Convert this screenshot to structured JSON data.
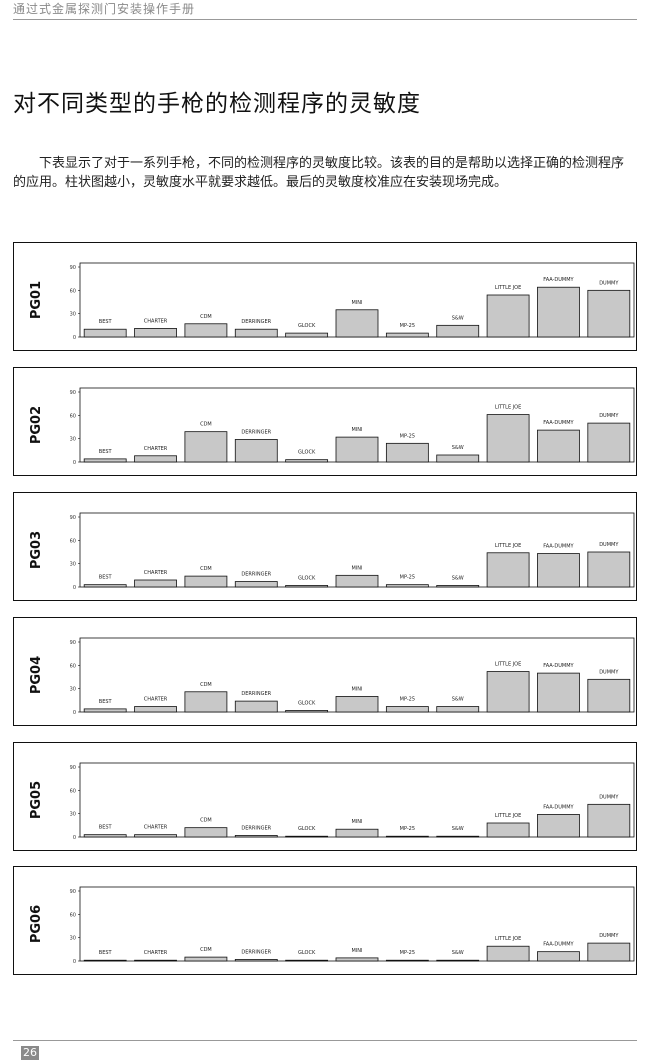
{
  "header": {
    "title": "通过式金属探测门安装操作手册"
  },
  "main_title": "对不同类型的手枪的检测程序的灵敏度",
  "intro": "下表显示了对于一系列手枪，不同的检测程序的灵敏度比较。该表的目的是帮助以选择正确的检测程序的应用。柱状图越小，灵敏度水平就要求越低。最后的灵敏度校准应在安装现场完成。",
  "footer": {
    "page_number": "26"
  },
  "chart_data": [
    {
      "type": "bar",
      "label": "PG01",
      "ylim": [
        0,
        90
      ],
      "yticks": [
        "0",
        "30",
        "60",
        "90"
      ],
      "categories": [
        "BEST",
        "CHARTER",
        "CDM",
        "DERRINGER",
        "GLOCK",
        "MINI",
        "MP-25",
        "S&W",
        "LITTLE JOE",
        "FAA-DUMMY",
        "DUMMY"
      ],
      "values": [
        10,
        11,
        17,
        10,
        5,
        35,
        5,
        15,
        54,
        64,
        60
      ]
    },
    {
      "type": "bar",
      "label": "PG02",
      "ylim": [
        0,
        90
      ],
      "yticks": [
        "0",
        "30",
        "60",
        "90"
      ],
      "categories": [
        "BEST",
        "CHARTER",
        "CDM",
        "DERRINGER",
        "GLOCK",
        "MINI",
        "MP-25",
        "S&W",
        "LITTLE JOE",
        "FAA-DUMMY",
        "DUMMY"
      ],
      "values": [
        4,
        8,
        39,
        29,
        3,
        32,
        24,
        9,
        61,
        41,
        50
      ]
    },
    {
      "type": "bar",
      "label": "PG03",
      "ylim": [
        0,
        90
      ],
      "yticks": [
        "0",
        "30",
        "60",
        "90"
      ],
      "categories": [
        "BEST",
        "CHARTER",
        "CDM",
        "DERRINGER",
        "GLOCK",
        "MINI",
        "MP-25",
        "S&W",
        "LITTLE JOE",
        "FAA-DUMMY",
        "DUMMY"
      ],
      "values": [
        3,
        9,
        14,
        7,
        2,
        15,
        3,
        2,
        44,
        43,
        45
      ]
    },
    {
      "type": "bar",
      "label": "PG04",
      "ylim": [
        0,
        90
      ],
      "yticks": [
        "0",
        "30",
        "60",
        "90"
      ],
      "categories": [
        "BEST",
        "CHARTER",
        "CDM",
        "DERRINGER",
        "GLOCK",
        "MINI",
        "MP-25",
        "S&W",
        "LITTLE JOE",
        "FAA-DUMMY",
        "DUMMY"
      ],
      "values": [
        4,
        7,
        26,
        14,
        2,
        20,
        7,
        7,
        52,
        50,
        42
      ]
    },
    {
      "type": "bar",
      "label": "PG05",
      "ylim": [
        0,
        90
      ],
      "yticks": [
        "0",
        "30",
        "60",
        "90"
      ],
      "categories": [
        "BEST",
        "CHARTER",
        "CDM",
        "DERRINGER",
        "GLOCK",
        "MINI",
        "MP-25",
        "S&W",
        "LITTLE JOE",
        "FAA-DUMMY",
        "DUMMY"
      ],
      "values": [
        3,
        3,
        12,
        2,
        1,
        10,
        1,
        1,
        18,
        29,
        42
      ]
    },
    {
      "type": "bar",
      "label": "PG06",
      "ylim": [
        0,
        90
      ],
      "yticks": [
        "0",
        "30",
        "60",
        "90"
      ],
      "categories": [
        "BEST",
        "CHARTER",
        "CDM",
        "DERRINGER",
        "GLOCK",
        "MINI",
        "MP-25",
        "S&W",
        "LITTLE JOE",
        "FAA-DUMMY",
        "DUMMY"
      ],
      "values": [
        1,
        1,
        5,
        2,
        1,
        4,
        1,
        1,
        19,
        12,
        23
      ]
    }
  ]
}
